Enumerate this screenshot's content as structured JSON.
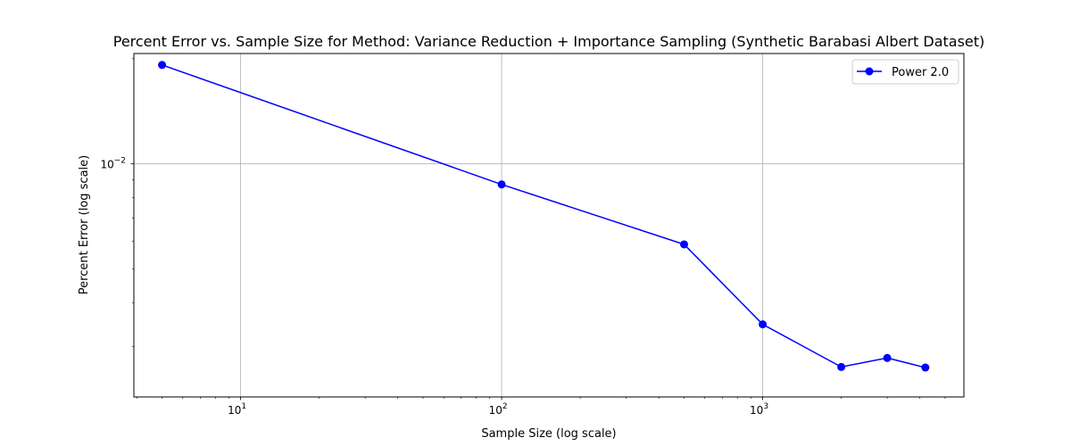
{
  "chart_data": {
    "type": "line",
    "title": "Percent Error vs. Sample Size for Method: Variance Reduction + Importance Sampling (Synthetic Barabasi Albert Dataset)",
    "xlabel": "Sample Size (log scale)",
    "ylabel": "Percent Error (log scale)",
    "xscale": "log",
    "yscale": "log",
    "xlim": [
      3.9,
      5900
    ],
    "ylim": [
      0.00215,
      0.0207
    ],
    "x_ticks": [
      {
        "value": 10,
        "base": "10",
        "exp": "1"
      },
      {
        "value": 100,
        "base": "10",
        "exp": "2"
      },
      {
        "value": 1000,
        "base": "10",
        "exp": "3"
      }
    ],
    "y_ticks": [
      {
        "value": 0.01,
        "base": "10",
        "exp": "−2"
      }
    ],
    "grid": true,
    "legend_position": "top-right",
    "series": [
      {
        "name": "Power 2.0",
        "color": "#0000ff",
        "marker": "circle",
        "x": [
          5,
          100,
          500,
          1000,
          2000,
          3000,
          4200
        ],
        "y": [
          0.0192,
          0.00873,
          0.00588,
          0.00347,
          0.00262,
          0.00278,
          0.00261
        ]
      }
    ]
  }
}
